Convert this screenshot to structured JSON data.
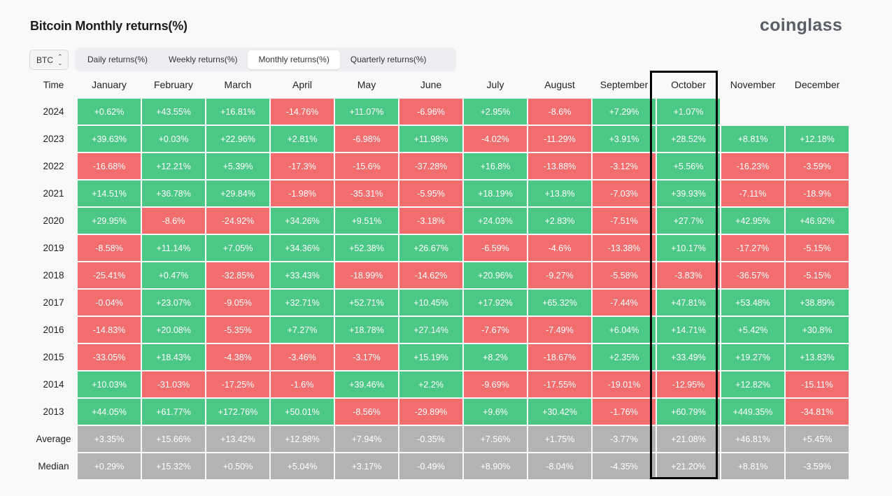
{
  "header": {
    "title": "Bitcoin Monthly returns(%)",
    "brand": "coinglass"
  },
  "coin_select": {
    "value": "BTC"
  },
  "tabs": [
    {
      "label": "Daily returns(%)",
      "active": false
    },
    {
      "label": "Weekly returns(%)",
      "active": false
    },
    {
      "label": "Monthly returns(%)",
      "active": true
    },
    {
      "label": "Quarterly returns(%)",
      "active": false
    }
  ],
  "table": {
    "columns": [
      "Time",
      "January",
      "February",
      "March",
      "April",
      "May",
      "June",
      "July",
      "August",
      "September",
      "October",
      "November",
      "December"
    ],
    "rows": [
      {
        "label": "2024",
        "values": [
          "+0.62%",
          "+43.55%",
          "+16.81%",
          "-14.76%",
          "+11.07%",
          "-6.96%",
          "+2.95%",
          "-8.6%",
          "+7.29%",
          "+1.07%",
          "",
          ""
        ]
      },
      {
        "label": "2023",
        "values": [
          "+39.63%",
          "+0.03%",
          "+22.96%",
          "+2.81%",
          "-6.98%",
          "+11.98%",
          "-4.02%",
          "-11.29%",
          "+3.91%",
          "+28.52%",
          "+8.81%",
          "+12.18%"
        ]
      },
      {
        "label": "2022",
        "values": [
          "-16.68%",
          "+12.21%",
          "+5.39%",
          "-17.3%",
          "-15.6%",
          "-37.28%",
          "+16.8%",
          "-13.88%",
          "-3.12%",
          "+5.56%",
          "-16.23%",
          "-3.59%"
        ]
      },
      {
        "label": "2021",
        "values": [
          "+14.51%",
          "+36.78%",
          "+29.84%",
          "-1.98%",
          "-35.31%",
          "-5.95%",
          "+18.19%",
          "+13.8%",
          "-7.03%",
          "+39.93%",
          "-7.11%",
          "-18.9%"
        ]
      },
      {
        "label": "2020",
        "values": [
          "+29.95%",
          "-8.6%",
          "-24.92%",
          "+34.26%",
          "+9.51%",
          "-3.18%",
          "+24.03%",
          "+2.83%",
          "-7.51%",
          "+27.7%",
          "+42.95%",
          "+46.92%"
        ]
      },
      {
        "label": "2019",
        "values": [
          "-8.58%",
          "+11.14%",
          "+7.05%",
          "+34.36%",
          "+52.38%",
          "+26.67%",
          "-6.59%",
          "-4.6%",
          "-13.38%",
          "+10.17%",
          "-17.27%",
          "-5.15%"
        ]
      },
      {
        "label": "2018",
        "values": [
          "-25.41%",
          "+0.47%",
          "-32.85%",
          "+33.43%",
          "-18.99%",
          "-14.62%",
          "+20.96%",
          "-9.27%",
          "-5.58%",
          "-3.83%",
          "-36.57%",
          "-5.15%"
        ]
      },
      {
        "label": "2017",
        "values": [
          "-0.04%",
          "+23.07%",
          "-9.05%",
          "+32.71%",
          "+52.71%",
          "+10.45%",
          "+17.92%",
          "+65.32%",
          "-7.44%",
          "+47.81%",
          "+53.48%",
          "+38.89%"
        ]
      },
      {
        "label": "2016",
        "values": [
          "-14.83%",
          "+20.08%",
          "-5.35%",
          "+7.27%",
          "+18.78%",
          "+27.14%",
          "-7.67%",
          "-7.49%",
          "+6.04%",
          "+14.71%",
          "+5.42%",
          "+30.8%"
        ]
      },
      {
        "label": "2015",
        "values": [
          "-33.05%",
          "+18.43%",
          "-4.38%",
          "-3.46%",
          "-3.17%",
          "+15.19%",
          "+8.2%",
          "-18.67%",
          "+2.35%",
          "+33.49%",
          "+19.27%",
          "+13.83%"
        ]
      },
      {
        "label": "2014",
        "values": [
          "+10.03%",
          "-31.03%",
          "-17.25%",
          "-1.6%",
          "+39.46%",
          "+2.2%",
          "-9.69%",
          "-17.55%",
          "-19.01%",
          "-12.95%",
          "+12.82%",
          "-15.11%"
        ]
      },
      {
        "label": "2013",
        "values": [
          "+44.05%",
          "+61.77%",
          "+172.76%",
          "+50.01%",
          "-8.56%",
          "-29.89%",
          "+9.6%",
          "+30.42%",
          "-1.76%",
          "+60.79%",
          "+449.35%",
          "-34.81%"
        ]
      }
    ],
    "stats": [
      {
        "label": "Average",
        "values": [
          "+3.35%",
          "+15.66%",
          "+13.42%",
          "+12.98%",
          "+7.94%",
          "-0.35%",
          "+7.56%",
          "+1.75%",
          "-3.77%",
          "+21.08%",
          "+46.81%",
          "+5.45%"
        ]
      },
      {
        "label": "Median",
        "values": [
          "+0.29%",
          "+15.32%",
          "+0.50%",
          "+5.04%",
          "+3.17%",
          "-0.49%",
          "+8.90%",
          "-8.04%",
          "-4.35%",
          "+21.20%",
          "+8.81%",
          "-3.59%"
        ]
      }
    ]
  },
  "colors": {
    "positive": "#4cc886",
    "negative": "#f26e6e",
    "stat": "#b3b3b3",
    "highlight_border": "#000000"
  }
}
